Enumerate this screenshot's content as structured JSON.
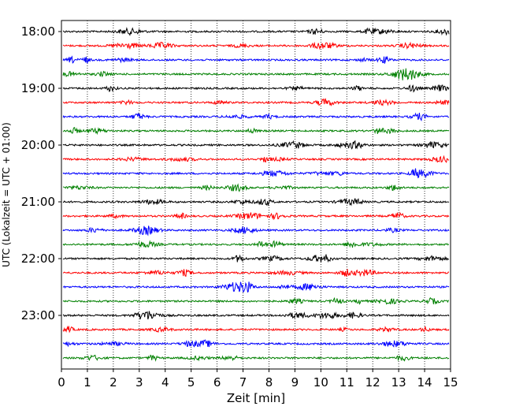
{
  "chart_data": {
    "type": "line",
    "title": "",
    "xlabel": "Zeit  [min]",
    "ylabel": "UTC (Lokalzeit = UTC + 01:00)",
    "xlim": [
      0,
      15
    ],
    "x_ticks": [
      "0",
      "1",
      "2",
      "3",
      "4",
      "5",
      "6",
      "7",
      "8",
      "9",
      "10",
      "11",
      "12",
      "13",
      "14",
      "15"
    ],
    "y_ticks": [
      "18:00",
      "19:00",
      "20:00",
      "21:00",
      "22:00",
      "23:00"
    ],
    "row_interval_minutes": 15,
    "start_time": "18:00",
    "row_count": 24,
    "grid": "vertical dotted at each minute",
    "colors": [
      "#000000",
      "#ff0000",
      "#0000ff",
      "#008000"
    ],
    "legend": "none"
  }
}
